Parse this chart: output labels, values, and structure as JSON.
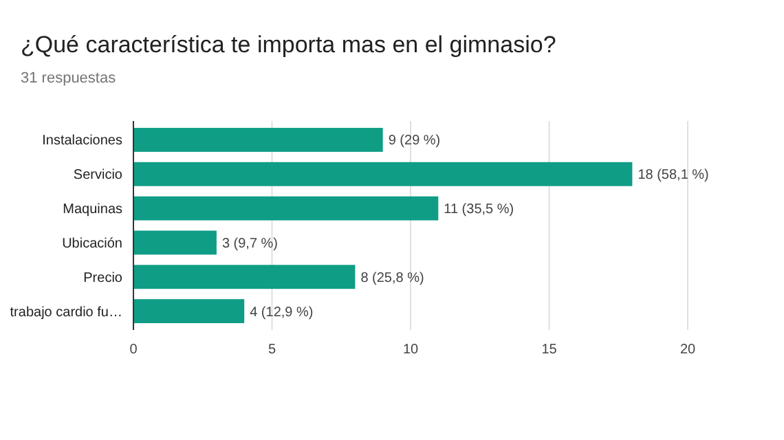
{
  "chart_data": {
    "type": "bar",
    "orientation": "horizontal",
    "title": "¿Qué característica te importa mas en el gimnasio?",
    "subtitle": "31 respuestas",
    "categories": [
      "Instalaciones",
      "Servicio",
      "Maquinas",
      "Ubicación",
      "Precio",
      "trabajo cardio fu…"
    ],
    "values": [
      9,
      18,
      11,
      3,
      8,
      4
    ],
    "color": "#0f9d86",
    "value_labels": [
      "9 (29 %)",
      "18 (58,1 %)",
      "11 (35,5 %)",
      "3 (9,7 %)",
      "8 (25,8 %)",
      "4 (12,9 %)"
    ],
    "xlim": [
      0,
      20
    ],
    "xticks": [
      0,
      5,
      10,
      15,
      20
    ],
    "grid": "x"
  }
}
